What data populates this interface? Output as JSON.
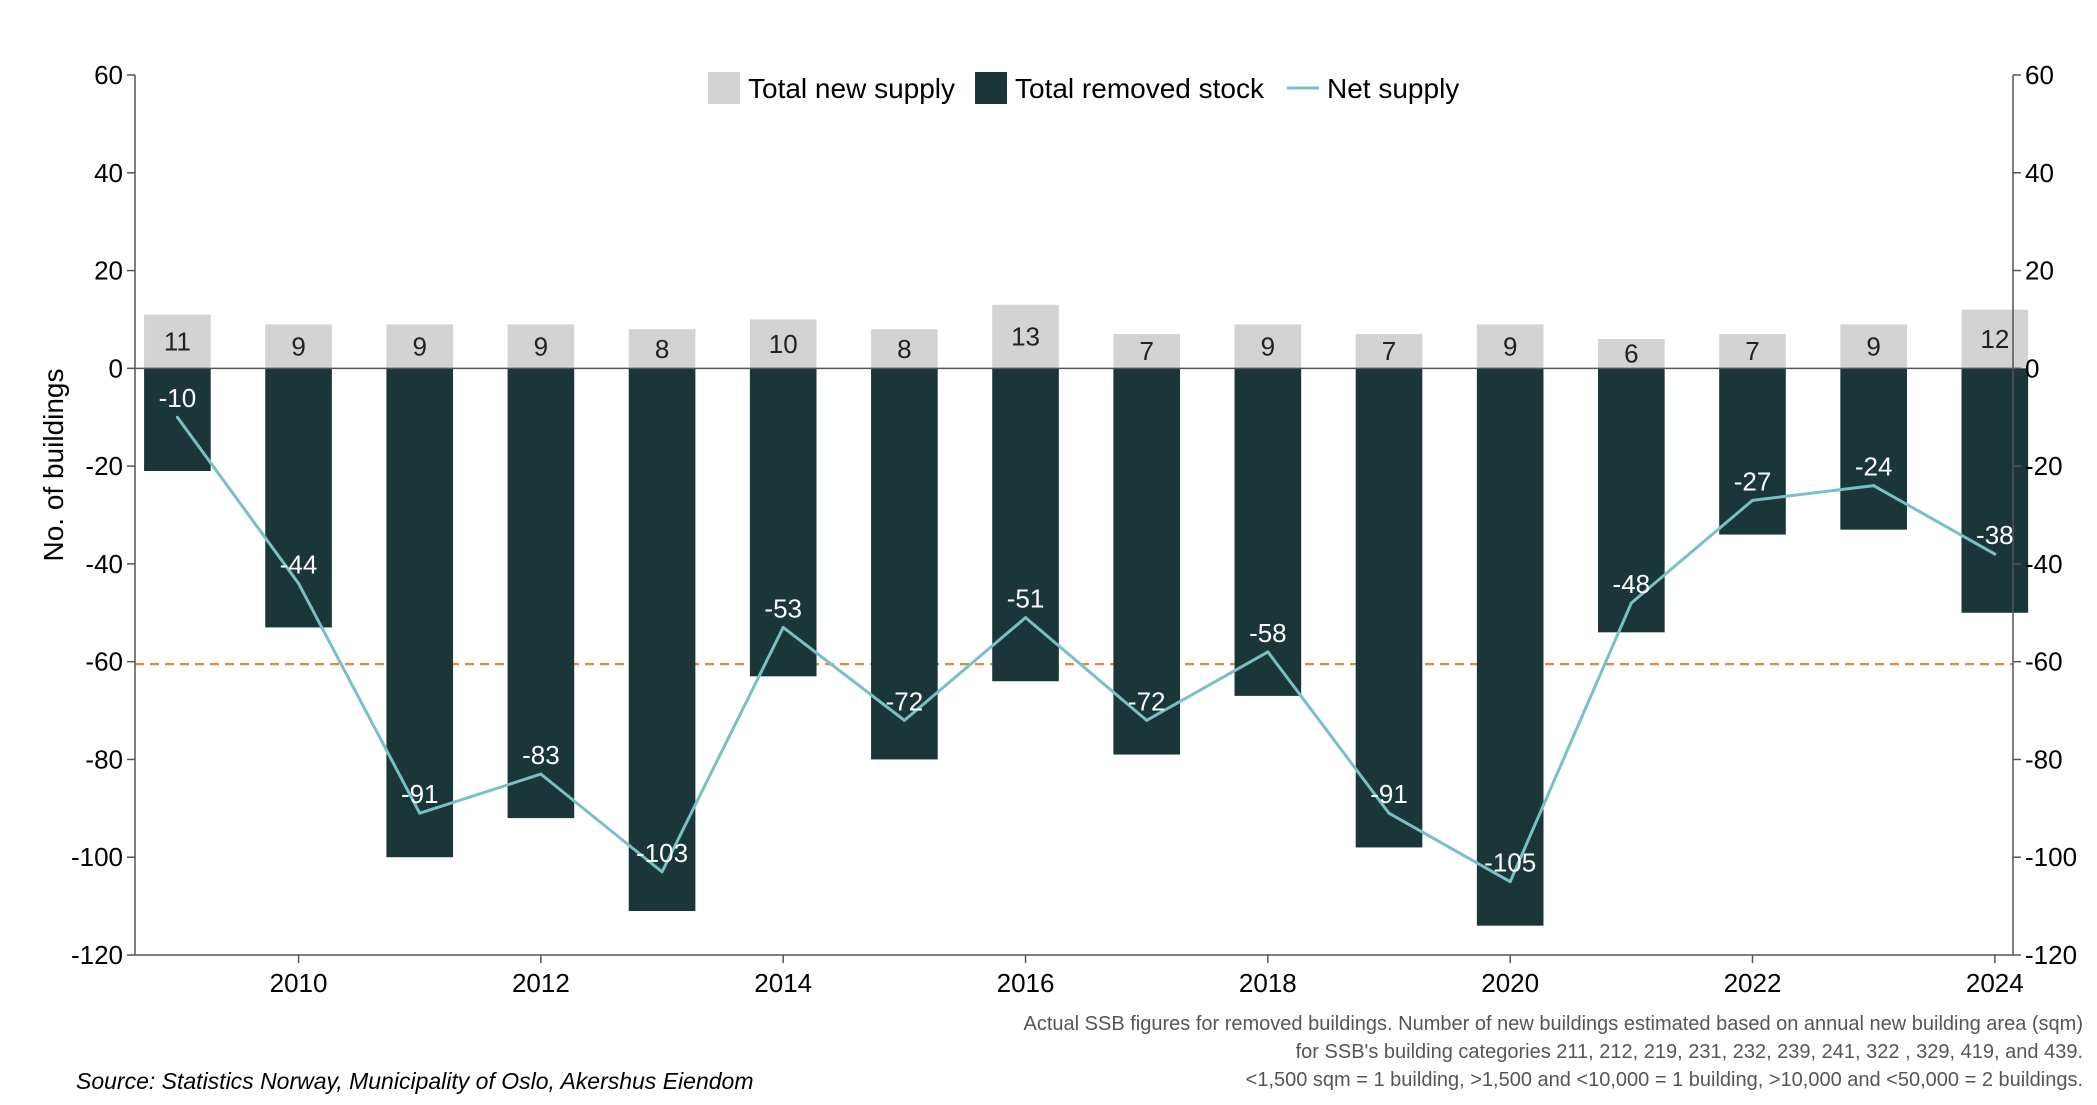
{
  "chart_data": {
    "type": "bar",
    "x": [
      2009,
      2010,
      2011,
      2012,
      2013,
      2014,
      2015,
      2016,
      2017,
      2018,
      2019,
      2020,
      2021,
      2022,
      2023,
      2024
    ],
    "x_tick_labels": [
      "2010",
      "2012",
      "2014",
      "2016",
      "2018",
      "2020",
      "2022",
      "2024"
    ],
    "series": [
      {
        "name": "Total new supply",
        "kind": "bar",
        "color": "#d3d3d3",
        "values": [
          11,
          9,
          9,
          9,
          8,
          10,
          8,
          13,
          7,
          9,
          7,
          9,
          6,
          7,
          9,
          12
        ]
      },
      {
        "name": "Total removed stock",
        "kind": "bar",
        "color": "#1b3638",
        "values": [
          -21,
          -53,
          -100,
          -92,
          -111,
          -63,
          -80,
          -64,
          -79,
          -67,
          -98,
          -114,
          -54,
          -34,
          -33,
          -50
        ]
      },
      {
        "name": "Net supply",
        "kind": "line",
        "color": "#78c0c4",
        "values": [
          -10,
          -44,
          -91,
          -83,
          -103,
          -53,
          -72,
          -51,
          -72,
          -58,
          -91,
          -105,
          -48,
          -27,
          -24,
          -38
        ]
      }
    ],
    "reference_line": {
      "y": -60.5,
      "style": "dashed",
      "color": "#e8873a"
    },
    "ylabel": "No. of buildings",
    "ylim": [
      -120,
      60
    ],
    "y_ticks": [
      60,
      40,
      20,
      0,
      -20,
      -40,
      -60,
      -80,
      -100,
      -120
    ],
    "secondary_y_axis": true,
    "legend": {
      "position": "top-center",
      "entries": [
        "Total new supply",
        "Total removed stock",
        "Net supply"
      ]
    },
    "grid": false
  },
  "notes": [
    "Actual SSB figures for removed buildings. Number of new buildings estimated based on annual new building area (sqm)",
    "for SSB's building categories 211, 212, 219, 231, 232, 239, 241, 322 , 329, 419, and 439.",
    "<1,500 sqm = 1 building, >1,500 and <10,000 = 1 building, >10,000 and <50,000 = 2 buildings."
  ],
  "source": "Source: Statistics Norway, Municipality of Oslo, Akershus Eiendom"
}
